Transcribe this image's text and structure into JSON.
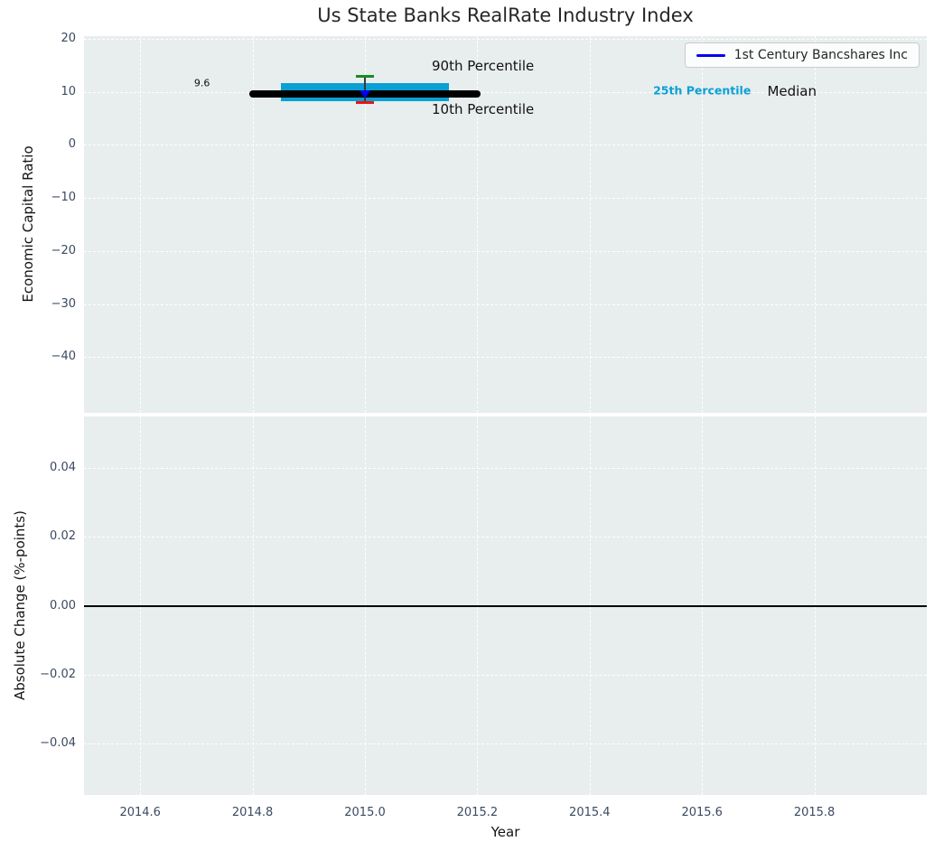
{
  "chart_data": {
    "type": "line",
    "title": "Us State Banks RealRate Industry Index",
    "xlabel": "Year",
    "xlim": [
      2014.5,
      2016.0
    ],
    "xticks": {
      "values": [
        2014.6,
        2014.8,
        2015.0,
        2015.2,
        2015.4,
        2015.6,
        2015.8
      ],
      "labels": [
        "2014.6",
        "2014.8",
        "2015.0",
        "2015.2",
        "2015.4",
        "2015.6",
        "2015.8"
      ]
    },
    "grid": "white-dashed",
    "background": "#e8edee",
    "legend": {
      "label": "1st Century Bancshares Inc",
      "line_color": "#0000ee",
      "position": "upper right"
    },
    "subplots": [
      {
        "ylabel": "Economic Capital Ratio",
        "ylim": [
          -50.5,
          20.5
        ],
        "yticks": {
          "values": [
            20,
            10,
            0,
            -10,
            -20,
            -30,
            -40
          ],
          "labels": [
            "20",
            "10",
            "0",
            "−10",
            "−20",
            "−30",
            "−40"
          ]
        },
        "elements": {
          "median_line": {
            "label": "Median",
            "value": 9.6,
            "x_start": 2014.8,
            "x_end": 2015.2,
            "color": "#000000",
            "thickness_px": 8
          },
          "percentile_band": {
            "label": "25th Percentile",
            "y_top": 11.7,
            "y_bottom": 8.25,
            "x_start": 2014.85,
            "x_end": 2015.15,
            "color": "#0aa0d4"
          },
          "p90_cap": {
            "label": "90th Percentile",
            "value": 13.0,
            "x": 2015.0,
            "color": "#1a8a24"
          },
          "p10_cap": {
            "label": "10th Percentile",
            "value": 7.95,
            "x": 2015.0,
            "color": "#e81616"
          },
          "whisker_line": {
            "from": 13.0,
            "to": 7.95,
            "x": 2015.0,
            "color": "#3a3a3a"
          },
          "company_marker": {
            "label": "1st Century Bancshares Inc",
            "value": 9.5,
            "x": 2015.0,
            "color": "#0000ee",
            "marker": "triangle-down"
          }
        },
        "annotations": [
          {
            "text": "90th Percentile",
            "x": 2015.21,
            "y": 14.9,
            "color": "#111111",
            "size": 15,
            "weight": "normal"
          },
          {
            "text": "10th Percentile",
            "x": 2015.21,
            "y": 6.7,
            "color": "#111111",
            "size": 15,
            "weight": "normal"
          },
          {
            "text": "25th Percentile",
            "x": 2015.6,
            "y": 10.2,
            "color": "#0aa0d4",
            "size": 12.5,
            "weight": "bold"
          },
          {
            "text": "Median",
            "x": 2015.76,
            "y": 10.1,
            "color": "#111111",
            "size": 15,
            "weight": "normal"
          },
          {
            "text": "9.6",
            "x": 2014.71,
            "y": 11.6,
            "color": "#111111",
            "size": 11,
            "weight": "normal"
          }
        ]
      },
      {
        "ylabel": "Absolute Change (%-points)",
        "ylim": [
          -0.055,
          0.055
        ],
        "yticks": {
          "values": [
            0.04,
            0.02,
            0.0,
            -0.02,
            -0.04
          ],
          "labels": [
            "0.04",
            "0.02",
            "0.00",
            "−0.02",
            "−0.04"
          ]
        },
        "elements": {
          "zero_line": {
            "value": 0.0,
            "color": "#000000",
            "thickness_px": 2
          }
        },
        "annotations": []
      }
    ]
  }
}
